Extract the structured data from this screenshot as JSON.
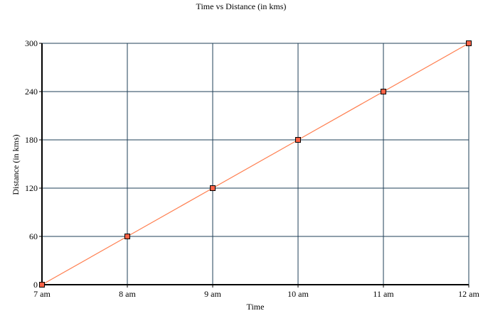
{
  "chart_data": {
    "type": "line",
    "title": "Time vs Distance (in kms)",
    "xlabel": "Time",
    "ylabel": "Distance (in kms)",
    "categories": [
      "7 am",
      "8 am",
      "9 am",
      "10 am",
      "11 am",
      "12 am"
    ],
    "series": [
      {
        "name": "Distance",
        "values": [
          0,
          60,
          120,
          180,
          240,
          300
        ]
      }
    ],
    "ylim": [
      0,
      300
    ],
    "yticks": [
      0,
      60,
      120,
      180,
      240,
      300
    ],
    "grid": true,
    "legend": "none"
  },
  "colors": {
    "line": "#ff7f50",
    "marker_fill": "#ff6347",
    "marker_stroke": "#000000",
    "grid": "#1f3f57",
    "axis": "#000000"
  }
}
